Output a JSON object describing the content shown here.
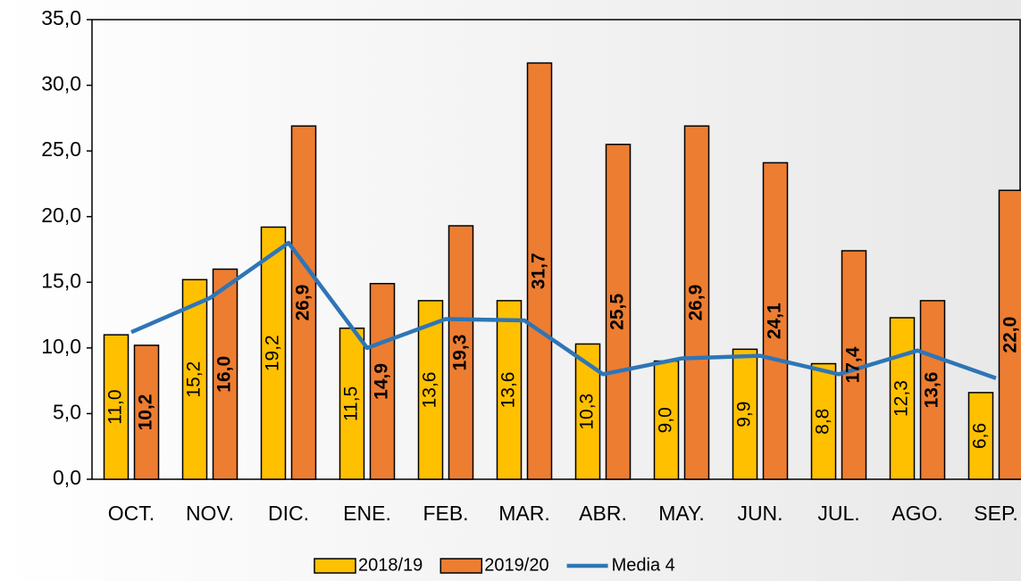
{
  "chart_data": {
    "type": "bar",
    "categories": [
      "OCT.",
      "NOV.",
      "DIC.",
      "ENE.",
      "FEB.",
      "MAR.",
      "ABR.",
      "MAY.",
      "JUN.",
      "JUL.",
      "AGO.",
      "SEP."
    ],
    "series": [
      {
        "name": "2018/19",
        "color": "#ffc000",
        "values": [
          11.0,
          15.2,
          19.2,
          11.5,
          13.6,
          13.6,
          10.3,
          9.0,
          9.9,
          8.8,
          12.3,
          6.6
        ],
        "value_labels": [
          "11,0",
          "15,2",
          "19,2",
          "11,5",
          "13,6",
          "13,6",
          "10,3",
          "9,0",
          "9,9",
          "8,8",
          "12,3",
          "6,6"
        ]
      },
      {
        "name": "2019/20",
        "color": "#ed7d31",
        "values": [
          10.2,
          16.0,
          26.9,
          14.9,
          19.3,
          31.7,
          25.5,
          26.9,
          24.1,
          17.4,
          13.6,
          22.0
        ],
        "value_labels": [
          "10,2",
          "16,0",
          "26,9",
          "14,9",
          "19,3",
          "31,7",
          "25,5",
          "26,9",
          "24,1",
          "17,4",
          "13,6",
          "22,0"
        ]
      },
      {
        "name": "Media 4",
        "color": "#2e75b6",
        "type": "line",
        "values": [
          11.2,
          13.8,
          18.0,
          10.0,
          12.2,
          12.1,
          8.0,
          9.2,
          9.4,
          8.0,
          9.8,
          7.7
        ]
      }
    ],
    "ylim": [
      0,
      35
    ],
    "yticks": [
      {
        "value": 0,
        "label": "0,0"
      },
      {
        "value": 5,
        "label": "5,0"
      },
      {
        "value": 10,
        "label": "10,0"
      },
      {
        "value": 15,
        "label": "15,0"
      },
      {
        "value": 20,
        "label": "20,0"
      },
      {
        "value": 25,
        "label": "25,0"
      },
      {
        "value": 30,
        "label": "30,0"
      },
      {
        "value": 35,
        "label": "35,0"
      }
    ],
    "legend": "bottom"
  }
}
